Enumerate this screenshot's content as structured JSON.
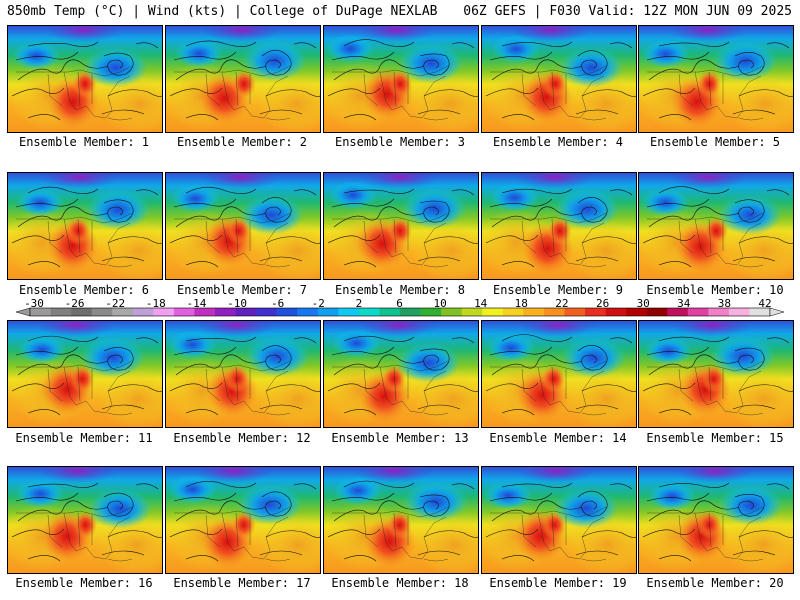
{
  "header": {
    "left": "850mb Temp (°C) | Wind (kts) | College of DuPage NEXLAB",
    "right": "06Z GEFS | F030 Valid: 12Z MON JUN 09 2025"
  },
  "panels": [
    {
      "label": "Ensemble Member: 1"
    },
    {
      "label": "Ensemble Member: 2"
    },
    {
      "label": "Ensemble Member: 3"
    },
    {
      "label": "Ensemble Member: 4"
    },
    {
      "label": "Ensemble Member: 5"
    },
    {
      "label": "Ensemble Member: 6"
    },
    {
      "label": "Ensemble Member: 7"
    },
    {
      "label": "Ensemble Member: 8"
    },
    {
      "label": "Ensemble Member: 9"
    },
    {
      "label": "Ensemble Member: 10"
    },
    {
      "label": "Ensemble Member: 11"
    },
    {
      "label": "Ensemble Member: 12"
    },
    {
      "label": "Ensemble Member: 13"
    },
    {
      "label": "Ensemble Member: 14"
    },
    {
      "label": "Ensemble Member: 15"
    },
    {
      "label": "Ensemble Member: 16"
    },
    {
      "label": "Ensemble Member: 17"
    },
    {
      "label": "Ensemble Member: 18"
    },
    {
      "label": "Ensemble Member: 19"
    },
    {
      "label": "Ensemble Member: 20"
    }
  ],
  "colorbar": {
    "tick_labels": [
      "-30",
      "-26",
      "-22",
      "-18",
      "-14",
      "-10",
      "-6",
      "-2",
      "2",
      "6",
      "10",
      "14",
      "18",
      "22",
      "26",
      "30",
      "34",
      "38",
      "42"
    ],
    "colors": [
      "#9a9a9a",
      "#808080",
      "#6e6e6e",
      "#8a8a8a",
      "#a8a8a8",
      "#c0a0d8",
      "#f0a0f0",
      "#e060e0",
      "#c030c0",
      "#9020c0",
      "#6020c0",
      "#4030d0",
      "#2050e0",
      "#1878f0",
      "#10a0f0",
      "#10c8f0",
      "#10d8c8",
      "#10c090",
      "#20a060",
      "#30b030",
      "#80c020",
      "#c0d820",
      "#f0f020",
      "#f8d020",
      "#f8b020",
      "#f89020",
      "#f06020",
      "#e83020",
      "#d01010",
      "#b00000",
      "#900000",
      "#c01060",
      "#e040a0",
      "#f080c8",
      "#f8b0e0",
      "#e0e0e0"
    ]
  }
}
